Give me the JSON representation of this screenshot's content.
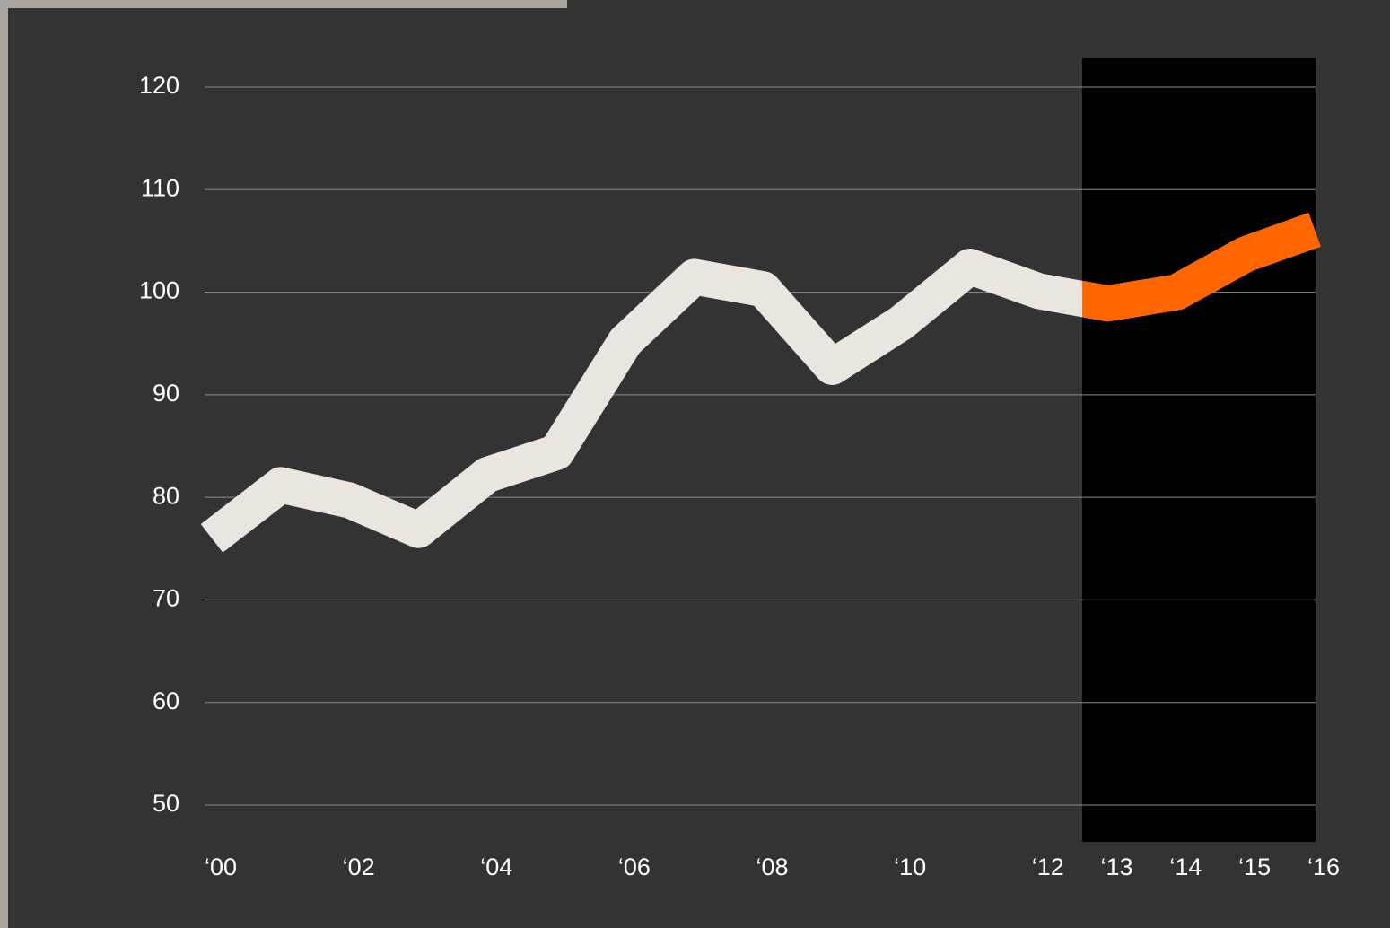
{
  "chart_data": {
    "type": "line",
    "x": [
      2000,
      2001,
      2002,
      2003,
      2004,
      2005,
      2006,
      2007,
      2008,
      2009,
      2010,
      2011,
      2012,
      2013,
      2014,
      2015,
      2016
    ],
    "series": [
      {
        "color": "#ebe5df",
        "highlight_color": "#ff6600",
        "values": [
          76,
          81.2,
          79.7,
          76.8,
          82.2,
          84.4,
          95.2,
          101.5,
          100.3,
          92.7,
          97,
          102.5,
          100.1,
          98.9,
          100,
          103.7,
          106.1
        ]
      }
    ],
    "xlim": [
      2000,
      2016
    ],
    "xticks": [
      {
        "value": 2000,
        "label": "‘00"
      },
      {
        "value": 2002,
        "label": "‘02"
      },
      {
        "value": 2004,
        "label": "‘04"
      },
      {
        "value": 2006,
        "label": "‘06"
      },
      {
        "value": 2008,
        "label": "‘08"
      },
      {
        "value": 2010,
        "label": "‘10"
      },
      {
        "value": 2012,
        "label": "‘12"
      },
      {
        "value": 2013,
        "label": "‘13"
      },
      {
        "value": 2014,
        "label": "‘14"
      },
      {
        "value": 2015,
        "label": "‘15"
      },
      {
        "value": 2016,
        "label": "‘16"
      }
    ],
    "ylim": [
      50,
      120
    ],
    "yticks": [
      50,
      60,
      70,
      80,
      90,
      100,
      110,
      120
    ],
    "grid": true
  }
}
